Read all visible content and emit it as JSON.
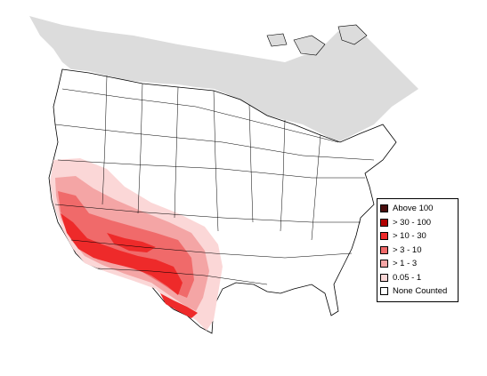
{
  "map": {
    "colors": {
      "background": "#ffffff",
      "outline": "#000000",
      "no_data": "#dcdcdc"
    }
  },
  "legend": {
    "items": [
      {
        "label": "Above 100",
        "color": "#4a0e0e"
      },
      {
        "label": "> 30 - 100",
        "color": "#b00000"
      },
      {
        "label": "> 10 - 30",
        "color": "#ee2a2a"
      },
      {
        "label": "> 3 - 10",
        "color": "#f06a6a"
      },
      {
        "label": "> 1 - 3",
        "color": "#f4a5a5"
      },
      {
        "label": "0.05 - 1",
        "color": "#fbd7d7"
      },
      {
        "label": "None Counted",
        "color": "#ffffff"
      }
    ]
  }
}
